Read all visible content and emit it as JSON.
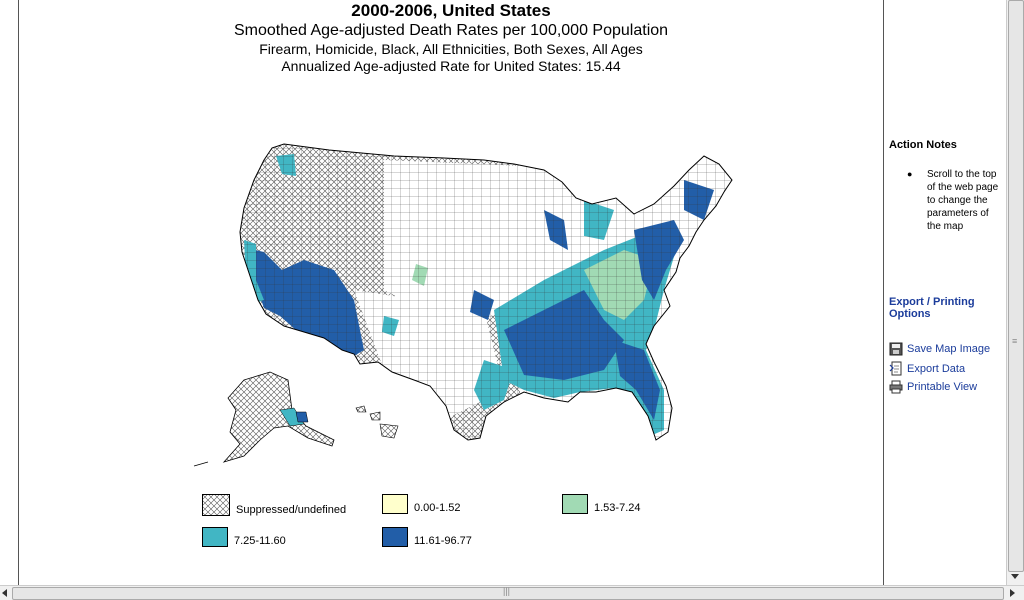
{
  "titles": {
    "line1": "2000-2006, United States",
    "line2": "Smoothed Age-adjusted Death Rates per 100,000 Population",
    "line3": "Firearm, Homicide, Black, All Ethnicities, Both Sexes, All Ages",
    "line4": "Annualized Age-adjusted Rate for United States: 15.44"
  },
  "legend": [
    {
      "label": "Suppressed/undefined",
      "color": "hatch"
    },
    {
      "label": "0.00-1.52",
      "color": "#ffffcc"
    },
    {
      "label": "1.53-7.24",
      "color": "#a1dab4"
    },
    {
      "label": "7.25-11.60",
      "color": "#41b6c4"
    },
    {
      "label": "11.61-96.77",
      "color": "#225ea8"
    }
  ],
  "sidebar": {
    "action_notes_title": "Action Notes",
    "note": "Scroll to the top of the web page to change the parameters of the map",
    "export_title": "Export / Printing Options",
    "options": [
      {
        "label": "Save Map Image",
        "icon": "floppy-disk-icon"
      },
      {
        "label": "Export Data",
        "icon": "export-document-icon"
      },
      {
        "label": "Printable View",
        "icon": "printer-icon"
      }
    ]
  },
  "colors": {
    "dark_blue": "#225ea8",
    "teal": "#41b6c4",
    "light_green": "#a1dab4",
    "link": "#1b3c9b"
  }
}
